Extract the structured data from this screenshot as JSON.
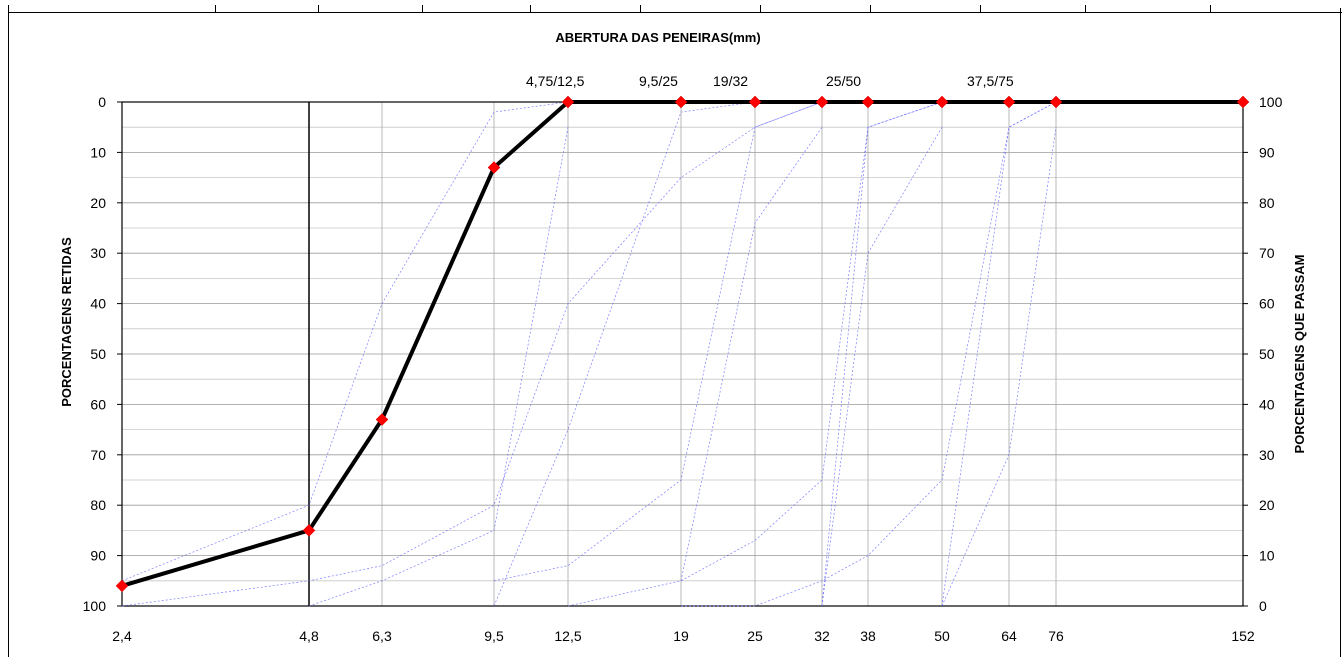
{
  "chart_data": {
    "type": "line",
    "title": "ABERTURA DAS PENEIRAS(mm)",
    "ylabel_left": "PORCENTAGENS RETIDAS",
    "ylabel_right": "PORCENTAGENS QUE PASSAM",
    "x_categories": [
      "2,4",
      "4,8",
      "6,3",
      "9,5",
      "12,5",
      "19",
      "25",
      "32",
      "38",
      "50",
      "64",
      "76",
      "152"
    ],
    "y_left_ticks": [
      "0",
      "10",
      "20",
      "30",
      "40",
      "50",
      "60",
      "70",
      "80",
      "90",
      "100"
    ],
    "y_right_ticks": [
      "100",
      "90",
      "80",
      "70",
      "60",
      "50",
      "40",
      "30",
      "20",
      "10",
      "0"
    ],
    "ylim": [
      0,
      100
    ],
    "zone_annotations": [
      {
        "label": "4,75/12,5",
        "x": "12,5"
      },
      {
        "label": "9,5/25",
        "x": "19"
      },
      {
        "label": "19/32",
        "x": "25"
      },
      {
        "label": "25/50",
        "x": "38"
      },
      {
        "label": "37,5/75",
        "x": "64"
      }
    ],
    "series": [
      {
        "color": "#000000",
        "markers": "red-diamond",
        "points": [
          {
            "x": "2,4",
            "retained": 96
          },
          {
            "x": "4,8",
            "retained": 85
          },
          {
            "x": "6,3",
            "retained": 63
          },
          {
            "x": "9,5",
            "retained": 13
          },
          {
            "x": "12,5",
            "retained": 0
          },
          {
            "x": "19",
            "retained": 0
          },
          {
            "x": "25",
            "retained": 0
          },
          {
            "x": "32",
            "retained": 0
          },
          {
            "x": "38",
            "retained": 0
          },
          {
            "x": "50",
            "retained": 0
          },
          {
            "x": "64",
            "retained": 0
          },
          {
            "x": "76",
            "retained": 0
          },
          {
            "x": "152",
            "retained": 0
          }
        ]
      }
    ],
    "limit_curves": {
      "color": "#6666ff",
      "curves": [
        [
          [
            "2,4",
            95
          ],
          [
            "4,8",
            80
          ],
          [
            "6,3",
            40
          ],
          [
            "9,5",
            2
          ],
          [
            "12,5",
            0
          ]
        ],
        [
          [
            "2,4",
            100
          ],
          [
            "4,8",
            95
          ],
          [
            "6,3",
            92
          ],
          [
            "9,5",
            80
          ],
          [
            "12,5",
            40
          ],
          [
            "19",
            15
          ],
          [
            "25",
            5
          ],
          [
            "32",
            0
          ]
        ],
        [
          [
            "4,8",
            100
          ],
          [
            "6,3",
            95
          ],
          [
            "9,5",
            85
          ],
          [
            "12,5",
            5
          ]
        ],
        [
          [
            "9,5",
            95
          ],
          [
            "12,5",
            92
          ],
          [
            "19",
            75
          ],
          [
            "25",
            5
          ],
          [
            "32",
            0
          ]
        ],
        [
          [
            "9,5",
            100
          ],
          [
            "12,5",
            65
          ],
          [
            "19",
            2
          ],
          [
            "25",
            0
          ]
        ],
        [
          [
            "12,5",
            100
          ],
          [
            "19",
            95
          ],
          [
            "25",
            87
          ],
          [
            "32",
            75
          ],
          [
            "38",
            5
          ],
          [
            "50",
            0
          ]
        ],
        [
          [
            "19",
            95
          ],
          [
            "25",
            24
          ],
          [
            "32",
            5
          ]
        ],
        [
          [
            "19",
            100
          ],
          [
            "25",
            100
          ],
          [
            "32",
            95
          ],
          [
            "38",
            90
          ],
          [
            "50",
            75
          ],
          [
            "64",
            5
          ],
          [
            "76",
            0
          ]
        ],
        [
          [
            "32",
            100
          ],
          [
            "38",
            30
          ],
          [
            "50",
            5
          ]
        ],
        [
          [
            "50",
            100
          ],
          [
            "64",
            70
          ],
          [
            "76",
            5
          ]
        ],
        [
          [
            "32",
            100
          ],
          [
            "38",
            5
          ],
          [
            "50",
            0
          ]
        ],
        [
          [
            "50",
            100
          ],
          [
            "64",
            5
          ],
          [
            "76",
            0
          ]
        ]
      ]
    },
    "grid": true,
    "legend": "none"
  }
}
